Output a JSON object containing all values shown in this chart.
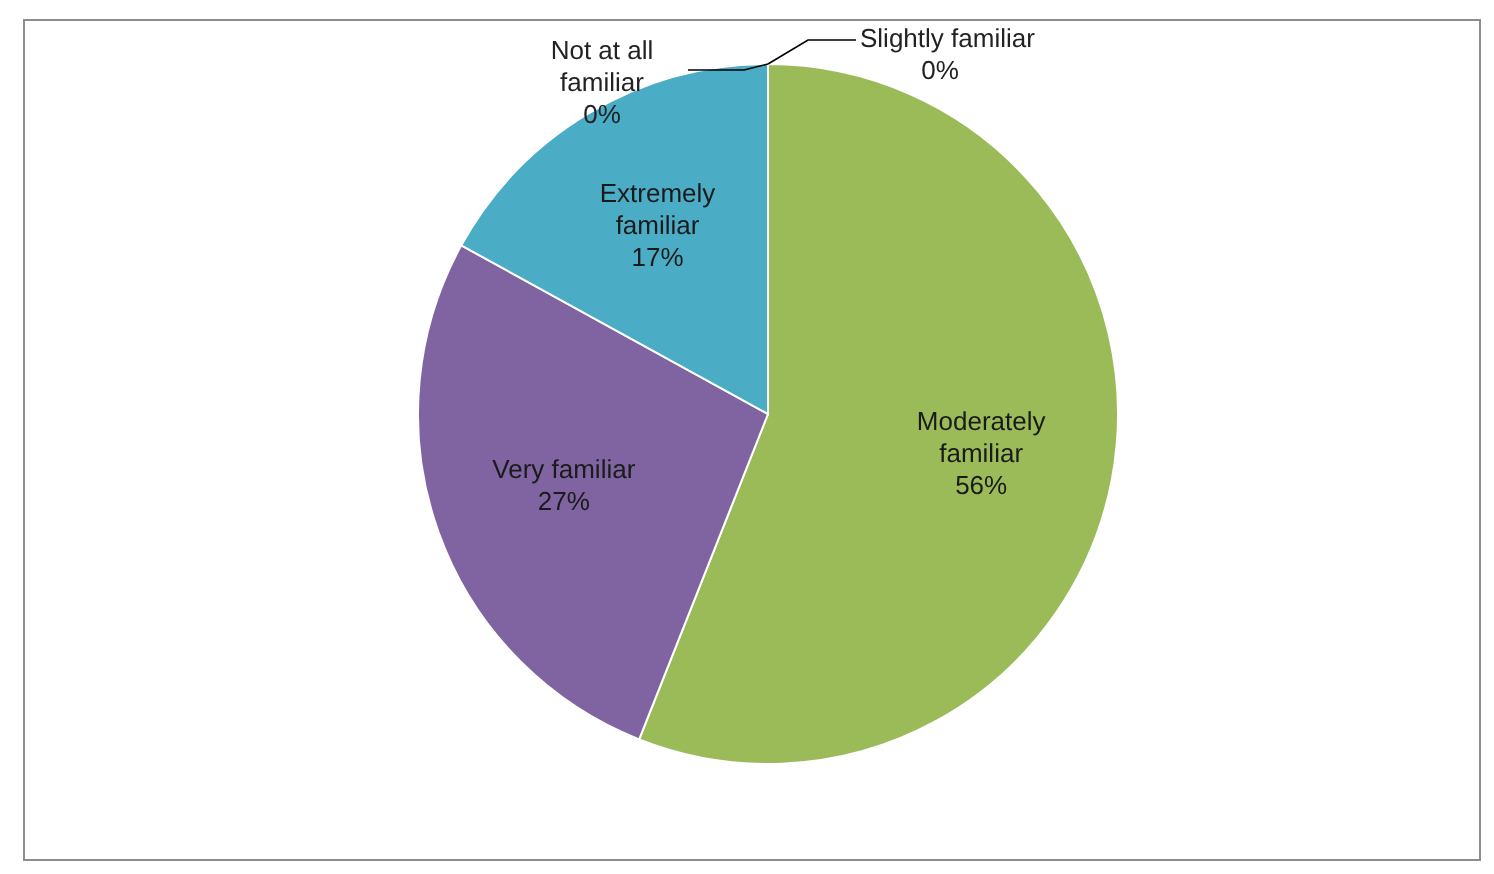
{
  "chart_data": {
    "type": "pie",
    "categories": [
      "Not at all familiar",
      "Slightly familiar",
      "Moderately familiar",
      "Very familiar",
      "Extremely familiar"
    ],
    "values": [
      0,
      0,
      56,
      27,
      17
    ],
    "colors": [
      "#4f81bd",
      "#c0504d",
      "#9bbb59",
      "#8064a2",
      "#4bacc6"
    ],
    "value_labels": [
      "0%",
      "0%",
      "56%",
      "27%",
      "17%"
    ]
  }
}
